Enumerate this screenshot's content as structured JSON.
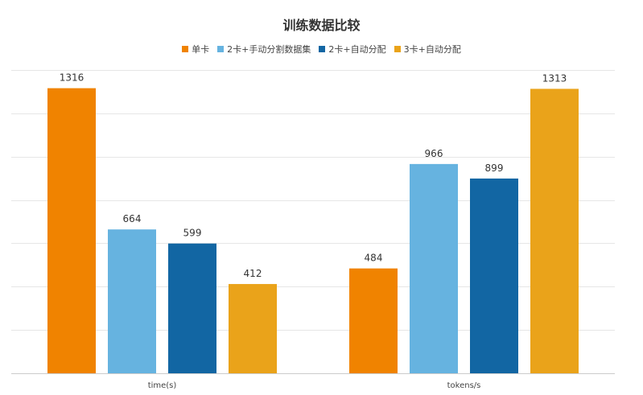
{
  "chart_data": {
    "type": "bar",
    "title": "训练数据比较",
    "categories": [
      "time(s)",
      "tokens/s"
    ],
    "series": [
      {
        "name": "单卡",
        "values": [
          1316,
          484
        ],
        "color": "#F08300"
      },
      {
        "name": "2卡+手动分割数据集",
        "values": [
          664,
          966
        ],
        "color": "#66B3E0"
      },
      {
        "name": "2卡+自动分配",
        "values": [
          599,
          899
        ],
        "color": "#1266A3"
      },
      {
        "name": "3卡+自动分配",
        "values": [
          412,
          1313
        ],
        "color": "#EAA31A"
      }
    ],
    "ylim": [
      0,
      1400
    ],
    "grid": true,
    "legend_position": "top-center",
    "xlabel": "",
    "ylabel": ""
  }
}
